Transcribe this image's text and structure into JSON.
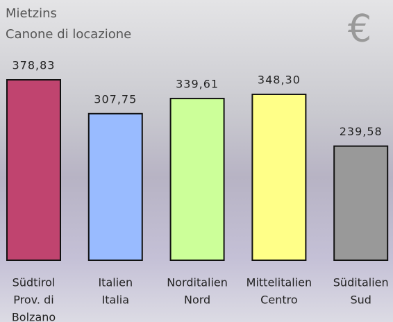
{
  "chart_data": {
    "type": "bar",
    "title": "Mietzins",
    "subtitle": "Canone di locazione",
    "annotation": "€",
    "categories": [
      [
        "Südtirol",
        "Prov. di",
        "Bolzano"
      ],
      [
        "Italien",
        "Italia"
      ],
      [
        "Norditalien",
        "Nord"
      ],
      [
        "Mittelitalien",
        "Centro"
      ],
      [
        "Süditalien",
        "Sud"
      ]
    ],
    "values": [
      378.83,
      307.75,
      339.61,
      348.3,
      239.58
    ],
    "value_labels": [
      "378,83",
      "307,75",
      "339,61",
      "348,30",
      "239,58"
    ],
    "colors": [
      "#c0446f",
      "#99bbff",
      "#ccff99",
      "#ffff88",
      "#999999"
    ]
  }
}
